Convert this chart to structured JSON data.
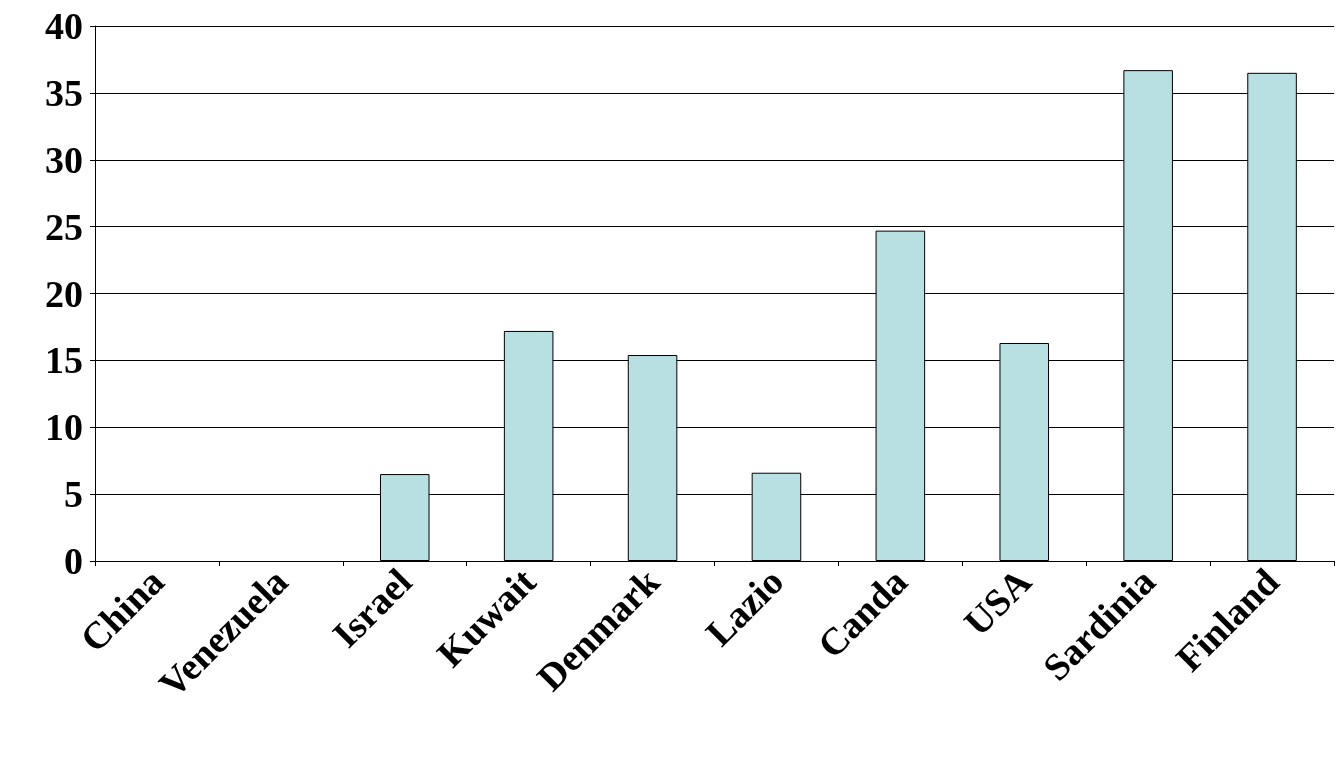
{
  "chart_data": {
    "type": "bar",
    "categories": [
      "China",
      "Venezuela",
      "Israel",
      "Kuwait",
      "Denmark",
      "Lazio",
      "Canda",
      "USA",
      "Sardinia",
      "Finland"
    ],
    "values": [
      0,
      0,
      6.5,
      17.2,
      15.4,
      6.6,
      24.7,
      16.3,
      36.7,
      36.5
    ],
    "color": "#b8dfe2",
    "ylim": [
      0,
      40
    ],
    "yticks": [
      0,
      5,
      10,
      15,
      20,
      25,
      30,
      35,
      40
    ],
    "grid": "y"
  }
}
